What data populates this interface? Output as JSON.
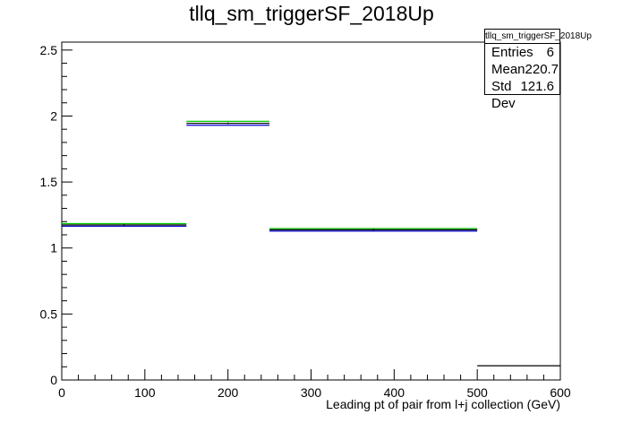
{
  "chart_data": {
    "type": "histogram",
    "title": "tllq_sm_triggerSF_2018Up",
    "xlabel": "Leading pt of pair from l+j collection (GeV)",
    "ylabel": "",
    "xlim": [
      0,
      600
    ],
    "ylim": [
      0,
      2.56
    ],
    "x_ticks": [
      "0",
      "100",
      "200",
      "300",
      "400",
      "500",
      "600"
    ],
    "y_ticks": [
      "0",
      "0.5",
      "1",
      "1.5",
      "2",
      "2.5"
    ],
    "grid": false,
    "stats": {
      "name": "tllq_sm_triggerSF_2018Up",
      "entries_label": "Entries",
      "entries": "6",
      "mean_label": "Mean",
      "mean": "220.7",
      "stddev_label": "Std Dev",
      "stddev": "121.6"
    },
    "series": [
      {
        "color": "#000000",
        "bins": [
          {
            "x0": 0,
            "x1": 150,
            "y": 1.175
          },
          {
            "x0": 150,
            "x1": 250,
            "y": 1.945
          },
          {
            "x0": 250,
            "x1": 500,
            "y": 1.138
          },
          {
            "x0": 500,
            "x1": 600,
            "y": 0.108
          }
        ]
      },
      {
        "color": "#00cc00",
        "bins": [
          {
            "x0": 0,
            "x1": 150,
            "y": 1.185
          },
          {
            "x0": 150,
            "x1": 250,
            "y": 1.96
          },
          {
            "x0": 250,
            "x1": 500,
            "y": 1.148
          }
        ]
      },
      {
        "color": "#0000cc",
        "bins": [
          {
            "x0": 0,
            "x1": 150,
            "y": 1.165
          },
          {
            "x0": 150,
            "x1": 250,
            "y": 1.93
          },
          {
            "x0": 250,
            "x1": 500,
            "y": 1.128
          }
        ]
      }
    ]
  }
}
